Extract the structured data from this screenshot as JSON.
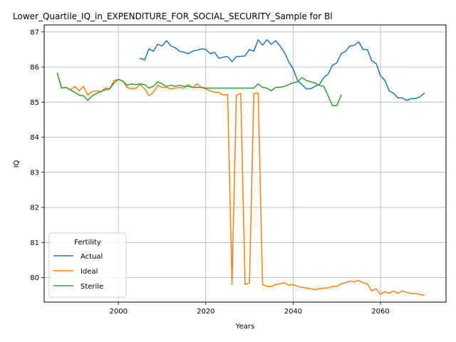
{
  "chart_data": {
    "type": "line",
    "title": "Lower_Quartile_IQ_in_EXPENDITURE_FOR_SOCIAL_SECURITY_Sample for Bl",
    "xlabel": "Years",
    "ylabel": "IQ",
    "xlim": [
      1983,
      2075
    ],
    "ylim": [
      79.3,
      87.2
    ],
    "xticks": [
      2000,
      2020,
      2040,
      2060
    ],
    "yticks": [
      80,
      81,
      82,
      83,
      84,
      85,
      86,
      87
    ],
    "grid": true,
    "legend": {
      "title": "Fertility",
      "placement": "lower-left"
    },
    "series": [
      {
        "name": "Actual",
        "color": "#1f77b4",
        "x": [
          2005,
          2006,
          2007,
          2008,
          2009,
          2010,
          2011,
          2012,
          2013,
          2014,
          2015,
          2016,
          2017,
          2018,
          2019,
          2020,
          2021,
          2022,
          2023,
          2024,
          2025,
          2026,
          2027,
          2028,
          2029,
          2030,
          2031,
          2032,
          2033,
          2034,
          2035,
          2036,
          2037,
          2038,
          2039,
          2040,
          2041,
          2042,
          2043,
          2044,
          2045,
          2046,
          2047,
          2048,
          2049,
          2050,
          2051,
          2052,
          2053,
          2054,
          2055,
          2056,
          2057,
          2058,
          2059,
          2060,
          2061,
          2062,
          2063,
          2064,
          2065,
          2066,
          2067,
          2068,
          2069,
          2070
        ],
        "y": [
          86.25,
          86.2,
          86.52,
          86.45,
          86.65,
          86.6,
          86.75,
          86.6,
          86.55,
          86.45,
          86.42,
          86.38,
          86.45,
          86.48,
          86.52,
          86.5,
          86.38,
          86.42,
          86.25,
          86.28,
          86.3,
          86.15,
          86.3,
          86.3,
          86.32,
          86.5,
          86.45,
          86.78,
          86.62,
          86.78,
          86.65,
          86.75,
          86.6,
          86.42,
          86.15,
          85.95,
          85.62,
          85.5,
          85.38,
          85.38,
          85.45,
          85.5,
          85.7,
          85.8,
          86.05,
          86.12,
          86.38,
          86.45,
          86.6,
          86.62,
          86.72,
          86.5,
          86.5,
          86.18,
          86.1,
          85.75,
          85.62,
          85.32,
          85.25,
          85.12,
          85.12,
          85.05,
          85.1,
          85.1,
          85.15,
          85.25
        ]
      },
      {
        "name": "Ideal",
        "color": "#ff7f0e",
        "x": [
          1986,
          1987,
          1988,
          1989,
          1990,
          1991,
          1992,
          1993,
          1994,
          1995,
          1996,
          1997,
          1998,
          1999,
          2000,
          2001,
          2002,
          2003,
          2004,
          2005,
          2006,
          2007,
          2008,
          2009,
          2010,
          2011,
          2012,
          2013,
          2014,
          2015,
          2016,
          2017,
          2018,
          2019,
          2020,
          2021,
          2022,
          2023,
          2024,
          2025,
          2026,
          2027,
          2028,
          2029,
          2030,
          2031,
          2032,
          2033,
          2034,
          2035,
          2036,
          2037,
          2038,
          2039,
          2040,
          2041,
          2042,
          2043,
          2044,
          2045,
          2046,
          2047,
          2048,
          2049,
          2050,
          2051,
          2052,
          2053,
          2054,
          2055,
          2056,
          2057,
          2058,
          2059,
          2060,
          2061,
          2062,
          2063,
          2064,
          2065,
          2066,
          2067,
          2068,
          2069,
          2070
        ],
        "y": [
          85.82,
          85.4,
          85.42,
          85.35,
          85.45,
          85.32,
          85.45,
          85.2,
          85.3,
          85.32,
          85.3,
          85.4,
          85.38,
          85.62,
          85.65,
          85.6,
          85.42,
          85.38,
          85.4,
          85.5,
          85.38,
          85.18,
          85.28,
          85.48,
          85.42,
          85.42,
          85.38,
          85.4,
          85.42,
          85.4,
          85.5,
          85.42,
          85.52,
          85.42,
          85.38,
          85.32,
          85.28,
          85.28,
          85.2,
          85.22,
          79.8,
          85.2,
          85.25,
          79.8,
          79.85,
          85.25,
          85.25,
          79.8,
          79.75,
          79.75,
          79.8,
          79.82,
          79.85,
          79.78,
          79.8,
          79.75,
          79.72,
          79.7,
          79.68,
          79.65,
          79.68,
          79.7,
          79.7,
          79.75,
          79.75,
          79.82,
          79.85,
          79.9,
          79.88,
          79.92,
          79.85,
          79.82,
          79.62,
          79.68,
          79.52,
          79.6,
          79.55,
          79.62,
          79.55,
          79.62,
          79.58,
          79.55,
          79.55,
          79.52,
          79.5
        ]
      },
      {
        "name": "Sterile",
        "color": "#2ca02c",
        "x": [
          1986,
          1987,
          1988,
          1989,
          1990,
          1991,
          1992,
          1993,
          1994,
          1995,
          1996,
          1997,
          1998,
          1999,
          2000,
          2001,
          2002,
          2003,
          2004,
          2005,
          2006,
          2007,
          2008,
          2009,
          2010,
          2011,
          2012,
          2013,
          2014,
          2015,
          2016,
          2017,
          2018,
          2019,
          2020,
          2021,
          2022,
          2023,
          2024,
          2025,
          2026,
          2027,
          2028,
          2029,
          2030,
          2031,
          2032,
          2033,
          2034,
          2035,
          2036,
          2037,
          2038,
          2039,
          2040,
          2041,
          2042,
          2043,
          2044,
          2045,
          2046,
          2047,
          2048,
          2049,
          2050,
          2051
        ],
        "y": [
          85.82,
          85.4,
          85.42,
          85.35,
          85.28,
          85.2,
          85.18,
          85.05,
          85.18,
          85.25,
          85.3,
          85.35,
          85.38,
          85.55,
          85.65,
          85.6,
          85.48,
          85.52,
          85.5,
          85.52,
          85.5,
          85.4,
          85.45,
          85.58,
          85.52,
          85.45,
          85.48,
          85.45,
          85.48,
          85.45,
          85.45,
          85.42,
          85.42,
          85.42,
          85.4,
          85.4,
          85.4,
          85.4,
          85.4,
          85.4,
          85.4,
          85.4,
          85.4,
          85.4,
          85.4,
          85.4,
          85.52,
          85.42,
          85.4,
          85.32,
          85.42,
          85.42,
          85.45,
          85.5,
          85.55,
          85.58,
          85.7,
          85.62,
          85.58,
          85.55,
          85.48,
          85.45,
          85.18,
          84.9,
          84.9,
          85.2
        ]
      }
    ]
  }
}
